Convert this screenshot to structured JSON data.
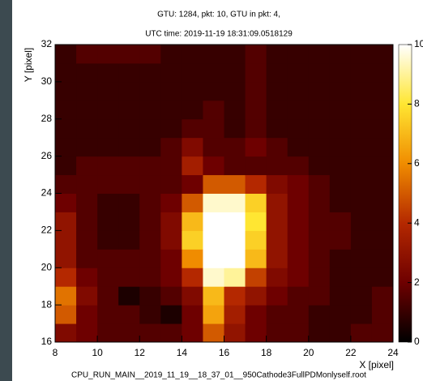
{
  "chart_data": {
    "type": "heatmap",
    "title": "GTU: 1284, pkt: 10, GTU in pkt: 4,",
    "subtitle": "UTC time: 2019-11-19 18:31:09.0518129",
    "footer": "CPU_RUN_MAIN__2019_11_19__18_37_01__950Cathode3FullPDMonlyself.root",
    "x_label": "X [pixel]",
    "y_label": "Y [pixel]",
    "xlim": [
      8,
      24
    ],
    "ylim": [
      16,
      32
    ],
    "zlim": [
      0,
      10
    ],
    "xticks": [
      8,
      10,
      12,
      14,
      16,
      18,
      20,
      22,
      24
    ],
    "yticks": [
      16,
      18,
      20,
      22,
      24,
      26,
      28,
      30,
      32
    ],
    "zticks": [
      0,
      2,
      4,
      6,
      8,
      10
    ],
    "colors": [
      "#000000",
      "#6e0000",
      "#b42800",
      "#f08c00",
      "#ffe632",
      "#ffffff"
    ],
    "z": [
      [
        2.5,
        2,
        1.5,
        1.5,
        1.5,
        1.5,
        2,
        5,
        3,
        2,
        1.5,
        1.5,
        1,
        1,
        1.5,
        1.5
      ],
      [
        5,
        2,
        1.5,
        1.5,
        1,
        0.5,
        2,
        6.5,
        3.5,
        2,
        1.5,
        1.5,
        1,
        1,
        1,
        1.5
      ],
      [
        5.5,
        2.5,
        1.5,
        0.5,
        1,
        1.5,
        2.5,
        7,
        4,
        3,
        2,
        1.5,
        1.5,
        1,
        1,
        1.5
      ],
      [
        4,
        2,
        1.5,
        1.5,
        1.5,
        2,
        4,
        9.5,
        9,
        4.5,
        2.5,
        2,
        1.5,
        1,
        1,
        1
      ],
      [
        3,
        1.5,
        1.5,
        1.5,
        1.5,
        2,
        6,
        10,
        10,
        7,
        3,
        2,
        1.5,
        1,
        1,
        1
      ],
      [
        3,
        1.5,
        1,
        1,
        1.5,
        2.5,
        7.5,
        10,
        10,
        7.5,
        3,
        2,
        1.5,
        1.5,
        1,
        1
      ],
      [
        3,
        1.5,
        1,
        1,
        1.5,
        2.5,
        7,
        10,
        10,
        8,
        3,
        2,
        1.5,
        1.5,
        1,
        1
      ],
      [
        2,
        1.5,
        1,
        1,
        1.5,
        2,
        5,
        9.5,
        9.5,
        7.5,
        3,
        2,
        1.5,
        1,
        1,
        1
      ],
      [
        1.5,
        1.5,
        1.5,
        1.5,
        1.5,
        1.5,
        2,
        5,
        5,
        4,
        2.5,
        2,
        1.5,
        1,
        1,
        1
      ],
      [
        1,
        1.5,
        1.5,
        1.5,
        1.5,
        1.5,
        3.5,
        2,
        1.5,
        1.5,
        1.5,
        1.5,
        1,
        1,
        1,
        1
      ],
      [
        1,
        1,
        1,
        1,
        1,
        1.5,
        2.5,
        1.5,
        1.5,
        2,
        1.5,
        1,
        1,
        1,
        1,
        1
      ],
      [
        1,
        1,
        1,
        1,
        1,
        1,
        1.5,
        1.5,
        1,
        1.5,
        1,
        1,
        1,
        1,
        1,
        1
      ],
      [
        1,
        1,
        1,
        1,
        1,
        1,
        1,
        1.5,
        1,
        1.5,
        1,
        1,
        1,
        1,
        1,
        1
      ],
      [
        1,
        1,
        1,
        1,
        1,
        1,
        1,
        1,
        1,
        1.5,
        1,
        1,
        1,
        1,
        1,
        1
      ],
      [
        1,
        1,
        1,
        1,
        1,
        1,
        1,
        1,
        1,
        1.5,
        1,
        1,
        1,
        1,
        1,
        1
      ],
      [
        1,
        1.5,
        1.5,
        1.5,
        1.5,
        1,
        1,
        1,
        1,
        1.5,
        1,
        1,
        1,
        1,
        1,
        1
      ]
    ]
  }
}
